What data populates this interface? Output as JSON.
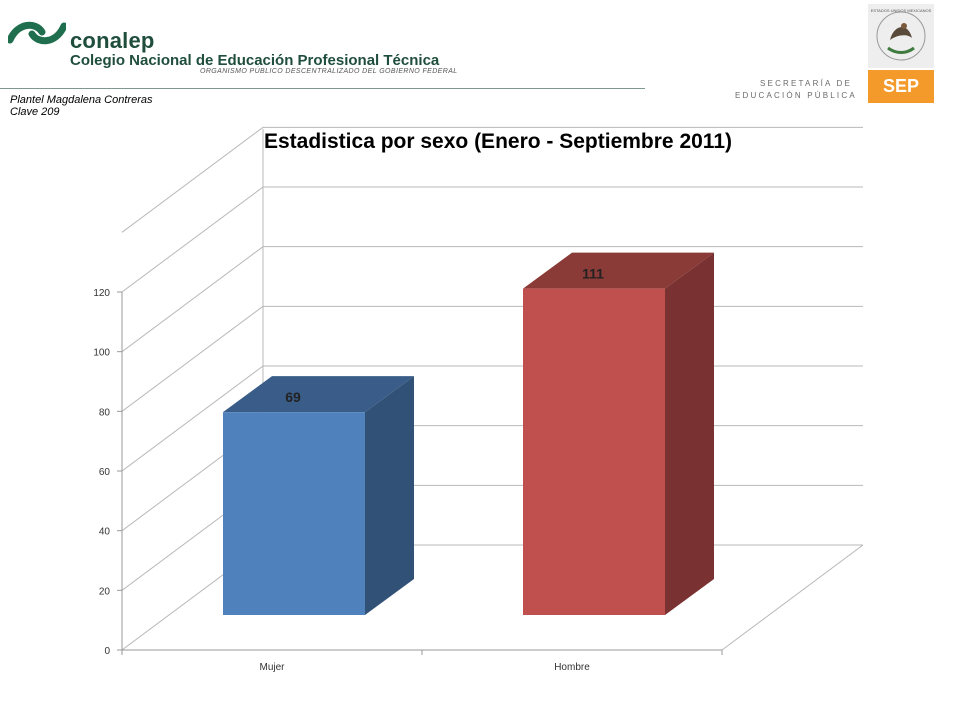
{
  "header": {
    "brand_name": "conalep",
    "brand_full": "Colegio Nacional de Educación Profesional Técnica",
    "brand_tag": "ORGANISMO PÚBLICO DESCENTRALIZADO DEL GOBIERNO FEDERAL",
    "plantel_line1": "Plantel  Magdalena Contreras",
    "plantel_line2": "Clave 209",
    "sep_label": "SEP",
    "sep_line1": "SECRETARÍA DE",
    "sep_line2": "EDUCACIÓN PÚBLICA",
    "seal_text": "ESTADOS UNIDOS MEXICANOS"
  },
  "colors": {
    "brand_green": "#1f4e3d",
    "sep_orange": "#f39a2a",
    "series_mujer": "#4f81bd",
    "series_hombre": "#c0504d"
  },
  "chart_data": {
    "type": "bar",
    "title": "Estadistica por sexo (Enero - Septiembre 2011)",
    "categories": [
      "Mujer",
      "Hombre"
    ],
    "values": [
      69,
      111
    ],
    "data_labels": [
      "69",
      "111"
    ],
    "bar_colors": [
      "#4f81bd",
      "#c0504d"
    ],
    "ylim": [
      0,
      120
    ],
    "yticks": [
      "0",
      "20",
      "40",
      "60",
      "80",
      "100",
      "120"
    ],
    "xlabel": "",
    "ylabel": "",
    "grid": true,
    "legend": "none",
    "style": "3d-column"
  }
}
